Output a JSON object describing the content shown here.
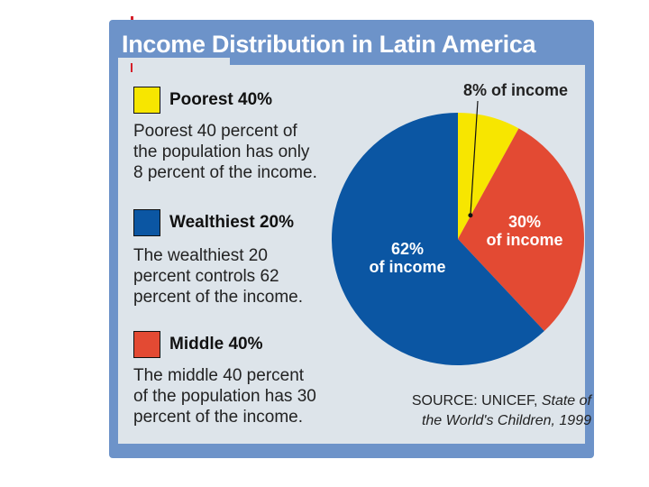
{
  "chart_data": {
    "type": "pie",
    "title": "Income Distribution in Latin America",
    "slices": [
      {
        "label": "Poorest 40%",
        "value": 8,
        "color": "#f7e600",
        "slice_label": [
          "8% of income"
        ]
      },
      {
        "label": "Middle 40%",
        "value": 30,
        "color": "#e34a33",
        "slice_label": [
          "30%",
          "of income"
        ]
      },
      {
        "label": "Wealthiest 20%",
        "value": 62,
        "color": "#0b56a3",
        "slice_label": [
          "62%",
          "of income"
        ]
      }
    ]
  },
  "legend": [
    {
      "label": "Poorest 40%",
      "color": "#f7e600",
      "description": [
        "Poorest 40 percent of",
        "the population has only",
        "8 percent of the income."
      ]
    },
    {
      "label": "Wealthiest 20%",
      "color": "#0b56a3",
      "description": [
        "The wealthiest 20",
        "percent controls 62",
        "percent of the income."
      ]
    },
    {
      "label": "Middle 40%",
      "color": "#e34a33",
      "description": [
        "The middle 40 percent",
        "of the population has 30",
        "percent of the income."
      ]
    }
  ],
  "source": {
    "prefix": "SOURCE: UNICEF, ",
    "title_part1": "State of",
    "title_part2": "the World's Children, 1999"
  }
}
